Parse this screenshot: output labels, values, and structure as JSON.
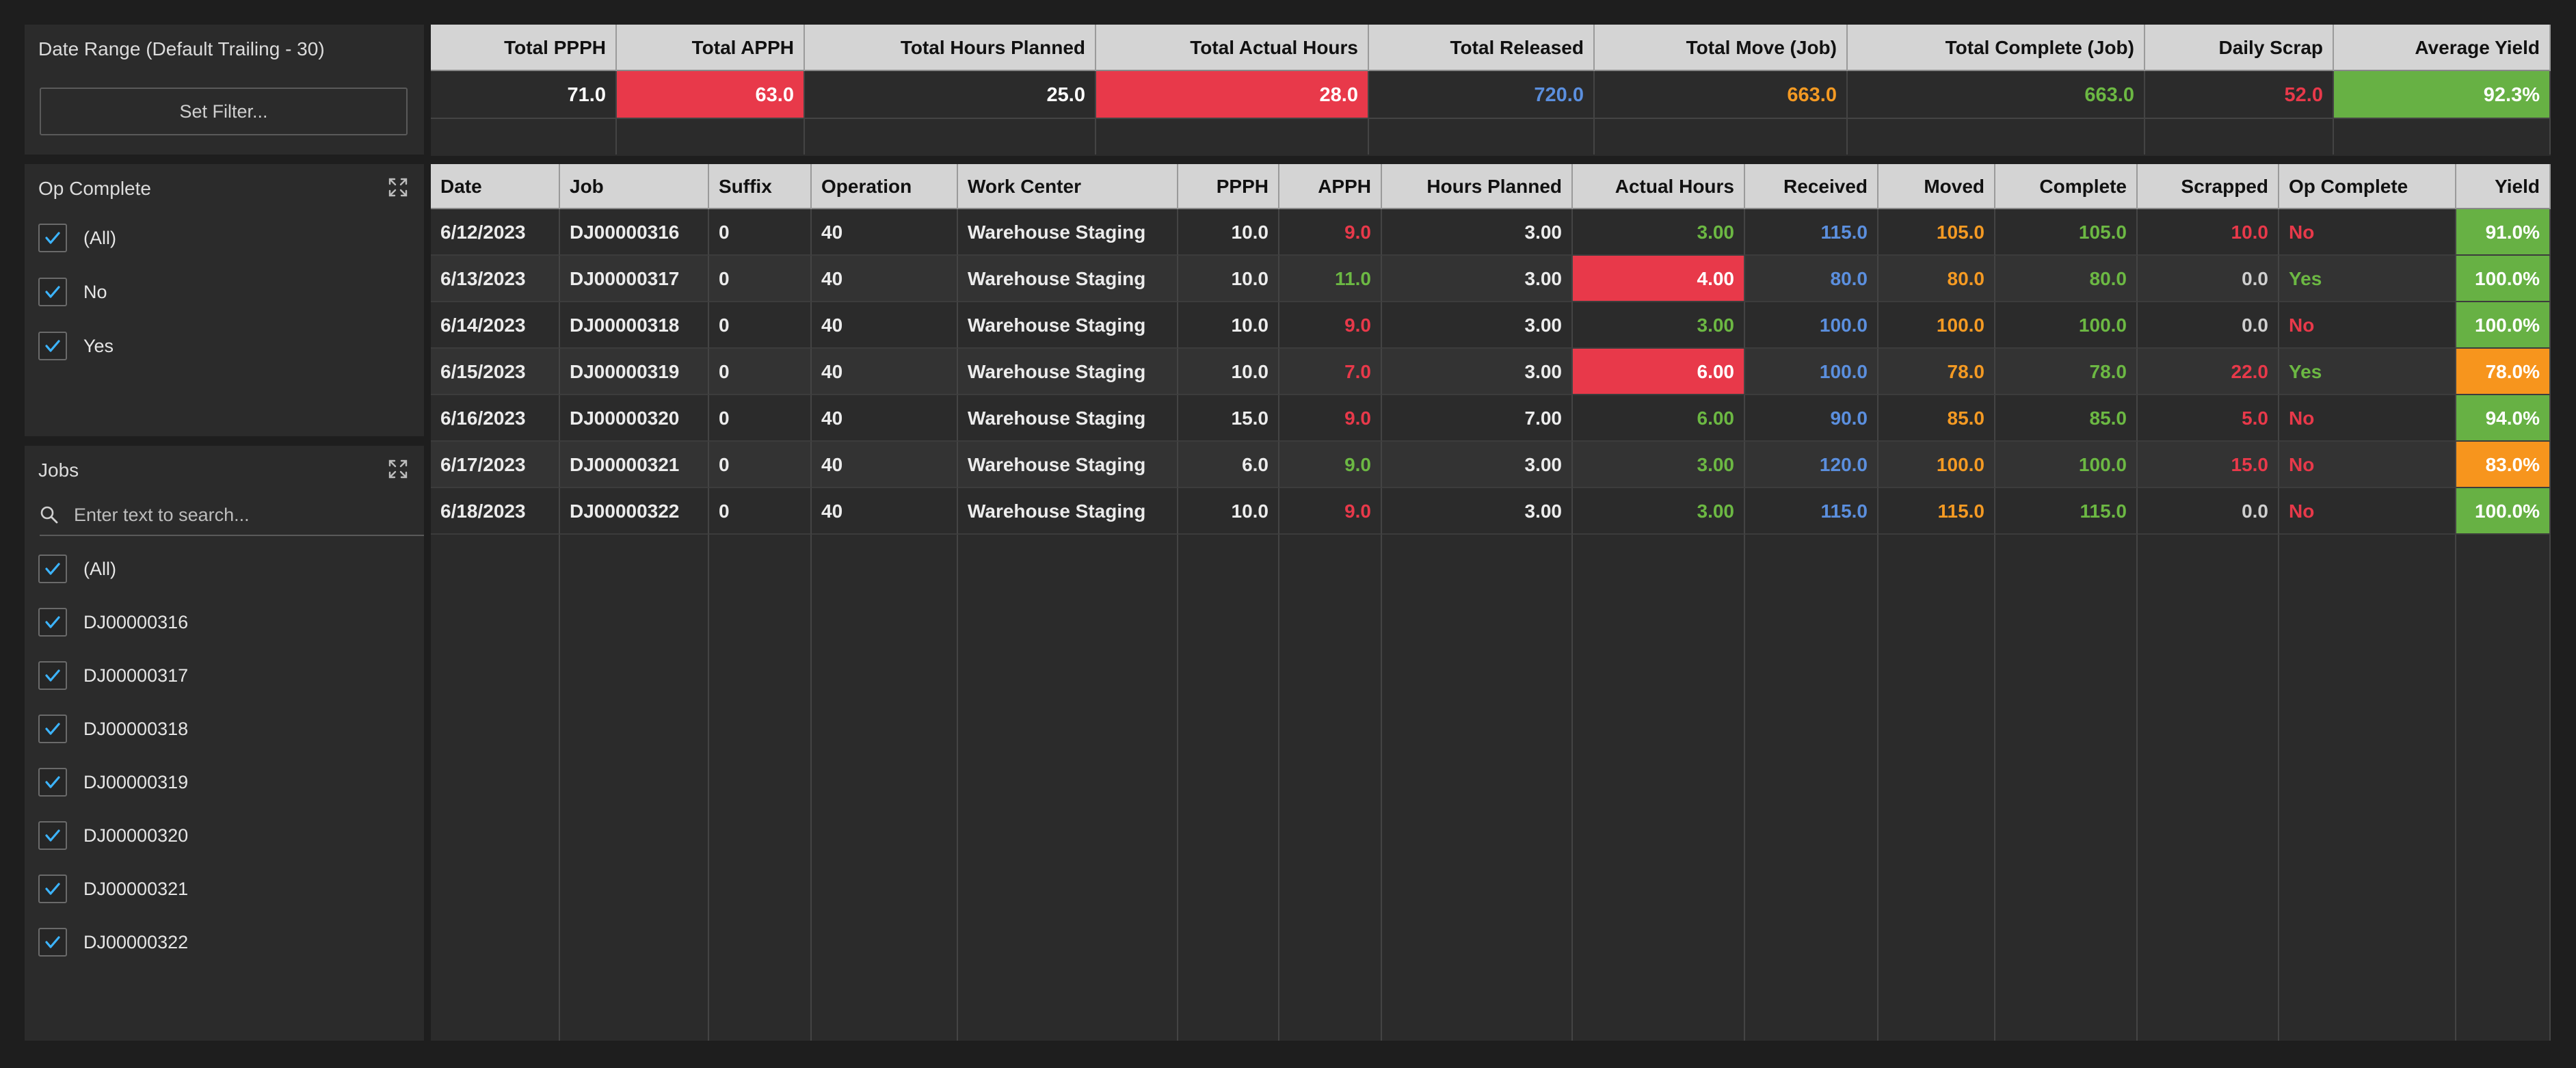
{
  "colors": {
    "red": "#e8394a",
    "green": "#6cb843",
    "blue": "#5b8fde",
    "orange": "#f49a23",
    "yield_green": "#67b144",
    "yield_orange": "#f7951d",
    "checkbox_accent": "#3cb4ff"
  },
  "filters": {
    "date_range": {
      "title": "Date Range (Default Trailing - 30)",
      "button_label": "Set Filter..."
    },
    "op_complete": {
      "title": "Op Complete",
      "options": [
        {
          "label": "(All)",
          "checked": true
        },
        {
          "label": "No",
          "checked": true
        },
        {
          "label": "Yes",
          "checked": true
        }
      ]
    },
    "jobs": {
      "title": "Jobs",
      "search_placeholder": "Enter text to search...",
      "options": [
        {
          "label": "(All)",
          "checked": true
        },
        {
          "label": "DJ00000316",
          "checked": true
        },
        {
          "label": "DJ00000317",
          "checked": true
        },
        {
          "label": "DJ00000318",
          "checked": true
        },
        {
          "label": "DJ00000319",
          "checked": true
        },
        {
          "label": "DJ00000320",
          "checked": true
        },
        {
          "label": "DJ00000321",
          "checked": true
        },
        {
          "label": "DJ00000322",
          "checked": true
        }
      ]
    }
  },
  "summary": {
    "headers": [
      "Total PPPH",
      "Total APPH",
      "Total Hours Planned",
      "Total Actual Hours",
      "Total Released",
      "Total Move (Job)",
      "Total Complete (Job)",
      "Daily Scrap",
      "Average Yield"
    ],
    "values": [
      "71.0",
      "63.0",
      "25.0",
      "28.0",
      "720.0",
      "663.0",
      "663.0",
      "52.0",
      "92.3%"
    ],
    "styles": [
      {
        "fg": "#ffffff",
        "bg": ""
      },
      {
        "fg": "#ffffff",
        "bg": "#e8394a"
      },
      {
        "fg": "#ffffff",
        "bg": ""
      },
      {
        "fg": "#ffffff",
        "bg": "#e8394a"
      },
      {
        "fg": "#5b8fde",
        "bg": ""
      },
      {
        "fg": "#f49a23",
        "bg": ""
      },
      {
        "fg": "#6cb843",
        "bg": ""
      },
      {
        "fg": "#e8394a",
        "bg": ""
      },
      {
        "fg": "#ffffff",
        "bg": "#67b144"
      }
    ]
  },
  "detail": {
    "headers": [
      "Date",
      "Job",
      "Suffix",
      "Operation",
      "Work Center",
      "PPPH",
      "APPH",
      "Hours Planned",
      "Actual Hours",
      "Received",
      "Moved",
      "Complete",
      "Scrapped",
      "Op Complete",
      "Yield"
    ],
    "rows": [
      {
        "cells": [
          "6/12/2023",
          "DJ00000316",
          "0",
          "40",
          "Warehouse Staging",
          "10.0",
          "9.0",
          "3.00",
          "3.00",
          "115.0",
          "105.0",
          "105.0",
          "10.0",
          "No",
          "91.0%"
        ],
        "fg": [
          "",
          "",
          "",
          "",
          "",
          "",
          "#e8394a",
          "",
          "#6cb843",
          "#5b8fde",
          "#f49a23",
          "#6cb843",
          "#e8394a",
          "#e8394a",
          "#ffffff"
        ],
        "bg": [
          "",
          "",
          "",
          "",
          "",
          "",
          "",
          "",
          "",
          "",
          "",
          "",
          "",
          "",
          "#67b144"
        ]
      },
      {
        "cells": [
          "6/13/2023",
          "DJ00000317",
          "0",
          "40",
          "Warehouse Staging",
          "10.0",
          "11.0",
          "3.00",
          "4.00",
          "80.0",
          "80.0",
          "80.0",
          "0.0",
          "Yes",
          "100.0%"
        ],
        "fg": [
          "",
          "",
          "",
          "",
          "",
          "",
          "#6cb843",
          "",
          "#ffffff",
          "#5b8fde",
          "#f49a23",
          "#6cb843",
          "#cfcfcf",
          "#6cb843",
          "#ffffff"
        ],
        "bg": [
          "",
          "",
          "",
          "",
          "",
          "",
          "",
          "",
          "#e8394a",
          "",
          "",
          "",
          "",
          "",
          "#67b144"
        ]
      },
      {
        "cells": [
          "6/14/2023",
          "DJ00000318",
          "0",
          "40",
          "Warehouse Staging",
          "10.0",
          "9.0",
          "3.00",
          "3.00",
          "100.0",
          "100.0",
          "100.0",
          "0.0",
          "No",
          "100.0%"
        ],
        "fg": [
          "",
          "",
          "",
          "",
          "",
          "",
          "#e8394a",
          "",
          "#6cb843",
          "#5b8fde",
          "#f49a23",
          "#6cb843",
          "#cfcfcf",
          "#e8394a",
          "#ffffff"
        ],
        "bg": [
          "",
          "",
          "",
          "",
          "",
          "",
          "",
          "",
          "",
          "",
          "",
          "",
          "",
          "",
          "#67b144"
        ]
      },
      {
        "cells": [
          "6/15/2023",
          "DJ00000319",
          "0",
          "40",
          "Warehouse Staging",
          "10.0",
          "7.0",
          "3.00",
          "6.00",
          "100.0",
          "78.0",
          "78.0",
          "22.0",
          "Yes",
          "78.0%"
        ],
        "fg": [
          "",
          "",
          "",
          "",
          "",
          "",
          "#e8394a",
          "",
          "#ffffff",
          "#5b8fde",
          "#f49a23",
          "#6cb843",
          "#e8394a",
          "#6cb843",
          "#ffffff"
        ],
        "bg": [
          "",
          "",
          "",
          "",
          "",
          "",
          "",
          "",
          "#e8394a",
          "",
          "",
          "",
          "",
          "",
          "#f7951d"
        ]
      },
      {
        "cells": [
          "6/16/2023",
          "DJ00000320",
          "0",
          "40",
          "Warehouse Staging",
          "15.0",
          "9.0",
          "7.00",
          "6.00",
          "90.0",
          "85.0",
          "85.0",
          "5.0",
          "No",
          "94.0%"
        ],
        "fg": [
          "",
          "",
          "",
          "",
          "",
          "",
          "#e8394a",
          "",
          "#6cb843",
          "#5b8fde",
          "#f49a23",
          "#6cb843",
          "#e8394a",
          "#e8394a",
          "#ffffff"
        ],
        "bg": [
          "",
          "",
          "",
          "",
          "",
          "",
          "",
          "",
          "",
          "",
          "",
          "",
          "",
          "",
          "#67b144"
        ]
      },
      {
        "cells": [
          "6/17/2023",
          "DJ00000321",
          "0",
          "40",
          "Warehouse Staging",
          "6.0",
          "9.0",
          "3.00",
          "3.00",
          "120.0",
          "100.0",
          "100.0",
          "15.0",
          "No",
          "83.0%"
        ],
        "fg": [
          "",
          "",
          "",
          "",
          "",
          "",
          "#6cb843",
          "",
          "#6cb843",
          "#5b8fde",
          "#f49a23",
          "#6cb843",
          "#e8394a",
          "#e8394a",
          "#ffffff"
        ],
        "bg": [
          "",
          "",
          "",
          "",
          "",
          "",
          "",
          "",
          "",
          "",
          "",
          "",
          "",
          "",
          "#f7951d"
        ]
      },
      {
        "cells": [
          "6/18/2023",
          "DJ00000322",
          "0",
          "40",
          "Warehouse Staging",
          "10.0",
          "9.0",
          "3.00",
          "3.00",
          "115.0",
          "115.0",
          "115.0",
          "0.0",
          "No",
          "100.0%"
        ],
        "fg": [
          "",
          "",
          "",
          "",
          "",
          "",
          "#e8394a",
          "",
          "#6cb843",
          "#5b8fde",
          "#f49a23",
          "#6cb843",
          "#cfcfcf",
          "#e8394a",
          "#ffffff"
        ],
        "bg": [
          "",
          "",
          "",
          "",
          "",
          "",
          "",
          "",
          "",
          "",
          "",
          "",
          "",
          "",
          "#67b144"
        ]
      }
    ],
    "align": [
      "l",
      "l",
      "l",
      "l",
      "l",
      "r",
      "r",
      "r",
      "r",
      "r",
      "r",
      "r",
      "r",
      "l",
      "r"
    ]
  }
}
